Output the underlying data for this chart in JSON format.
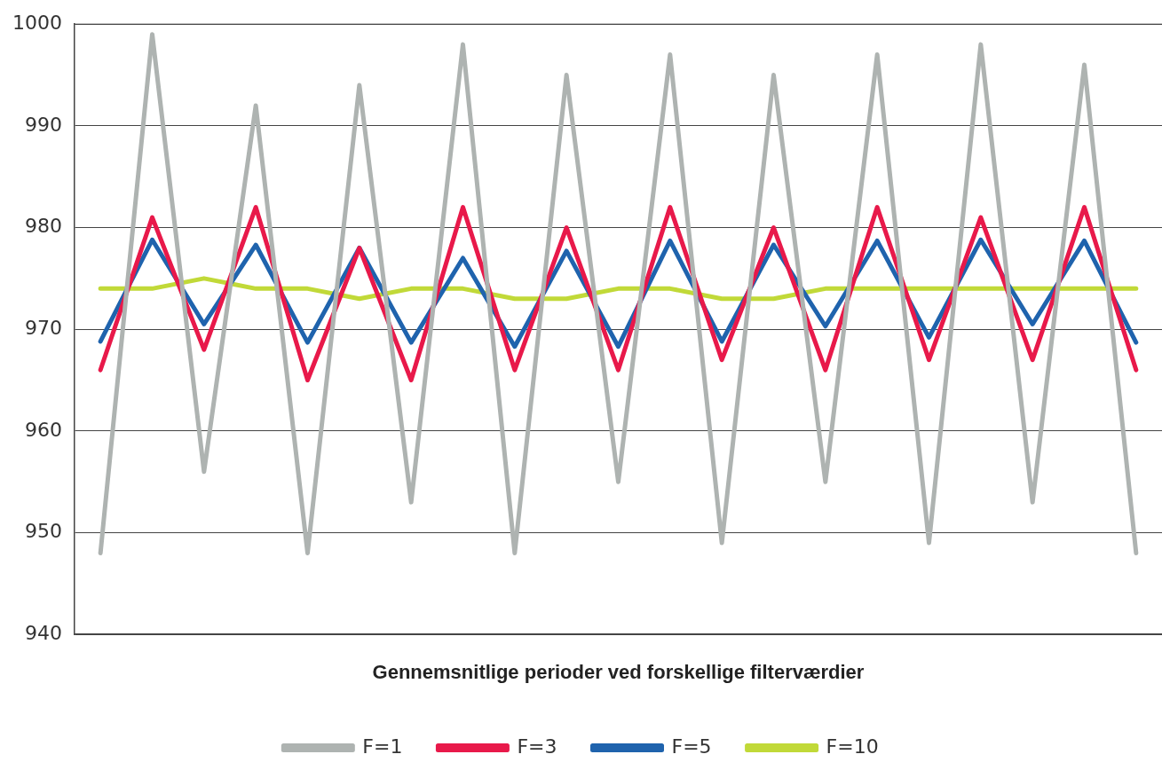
{
  "chart_data": {
    "type": "line",
    "xlabel": "Gennemsnitlige perioder ved forskellige filterværdier",
    "categories": [
      null,
      null,
      null,
      null,
      null,
      null,
      null,
      null,
      null,
      null,
      null,
      null,
      null,
      null,
      null,
      null,
      null,
      null,
      null,
      null,
      null
    ],
    "series": [
      {
        "name": "F=1",
        "color": "#aeb3b1",
        "values": [
          948,
          999,
          956,
          992,
          948,
          994,
          953,
          998,
          948,
          995,
          955,
          997,
          949,
          995,
          955,
          997,
          949,
          998,
          953,
          996,
          948
        ]
      },
      {
        "name": "F=3",
        "color": "#e8194a",
        "values": [
          966,
          981,
          968,
          982,
          965,
          978,
          965,
          982,
          966,
          980,
          966,
          982,
          967,
          980,
          966,
          982,
          967,
          981,
          967,
          982,
          966
        ]
      },
      {
        "name": "F=5",
        "color": "#1f63ad",
        "values": [
          968.8,
          978.8,
          970.5,
          978.3,
          968.7,
          978,
          968.7,
          977,
          968.3,
          977.7,
          968.3,
          978.7,
          968.8,
          978.3,
          970.3,
          978.7,
          969.2,
          978.8,
          970.5,
          978.7,
          968.7
        ]
      },
      {
        "name": "F=10",
        "color": "#c1d938",
        "values": [
          974,
          974,
          975,
          974,
          974,
          973,
          974,
          974,
          973,
          973,
          974,
          974,
          973,
          973,
          974,
          974,
          974,
          974,
          974,
          974,
          974
        ]
      }
    ],
    "ylim": [
      940,
      1000
    ],
    "yticks": [
      940,
      950,
      960,
      970,
      980,
      990,
      1000
    ],
    "grid": "y",
    "legend": "bottom",
    "marker": "none",
    "line_style": "solid"
  }
}
